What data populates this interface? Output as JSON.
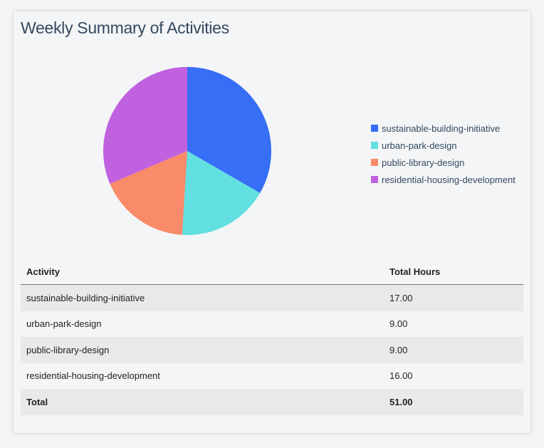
{
  "title": "Weekly Summary of Activities",
  "chart_data": {
    "type": "pie",
    "title": "",
    "categories": [
      "sustainable-building-initiative",
      "urban-park-design",
      "public-library-design",
      "residential-housing-development"
    ],
    "values": [
      17,
      9,
      9,
      16
    ],
    "colors": [
      "#366ef5",
      "#62dfe0",
      "#f98a6a",
      "#c062e0"
    ],
    "legend_placement": "right"
  },
  "table": {
    "headers": [
      "Activity",
      "Total Hours"
    ],
    "rows": [
      [
        "sustainable-building-initiative",
        "17.00"
      ],
      [
        "urban-park-design",
        "9.00"
      ],
      [
        "public-library-design",
        "9.00"
      ],
      [
        "residential-housing-development",
        "16.00"
      ]
    ],
    "total": [
      "Total",
      "51.00"
    ]
  }
}
